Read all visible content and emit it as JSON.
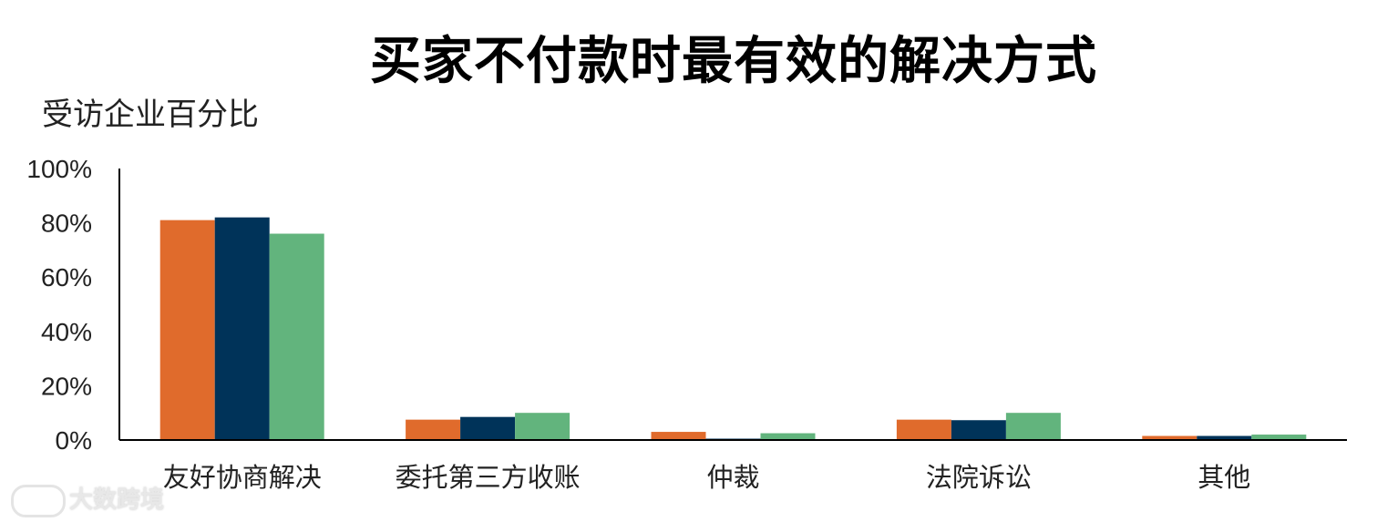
{
  "chart_data": {
    "type": "bar",
    "title": "买家不付款时最有效的解决方式",
    "ylabel": "受访企业百分比",
    "xlabel": "",
    "categories": [
      "友好协商解决",
      "委托第三方收账",
      "仲裁",
      "法院诉讼",
      "其他"
    ],
    "series": [
      {
        "color": "#E06B2C",
        "values": [
          81,
          7.5,
          3,
          7.5,
          1.5
        ]
      },
      {
        "color": "#003359",
        "values": [
          82,
          8.5,
          0.5,
          7.3,
          1.5
        ]
      },
      {
        "color": "#62B47D",
        "values": [
          76,
          10,
          2.5,
          10,
          2
        ]
      }
    ],
    "ylim": [
      0,
      100
    ],
    "yticks": [
      0,
      20,
      40,
      60,
      80,
      100
    ],
    "ytick_labels": [
      "0%",
      "20%",
      "40%",
      "60%",
      "80%",
      "100%"
    ],
    "grid": false,
    "legend": "none"
  },
  "watermark": {
    "text": "大数跨境"
  }
}
